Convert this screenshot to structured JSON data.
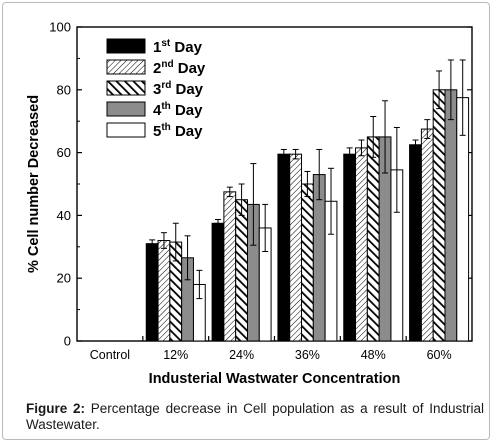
{
  "caption": {
    "label": "Figure 2:",
    "text": "Percentage decrease in Cell population as a result of Industrial Wastewater."
  },
  "chart_data": {
    "type": "bar",
    "categories": [
      "Control",
      "12%",
      "24%",
      "36%",
      "48%",
      "60%"
    ],
    "xlabel": "Industerial Wastwater Concentration",
    "ylabel": "% Cell number Decreased",
    "ylim": [
      0,
      100
    ],
    "yticks": [
      0,
      20,
      40,
      60,
      80,
      100
    ],
    "legend_position": "top-left",
    "series": [
      {
        "name": "1st Day",
        "base": "1",
        "sup": "st",
        "word": "Day",
        "fill": "solid-black",
        "values": [
          0,
          31,
          37.5,
          59.5,
          59.5,
          62.5
        ],
        "errors": [
          0,
          1.2,
          1.2,
          1.5,
          2.0,
          1.5
        ]
      },
      {
        "name": "2nd Day",
        "base": "2",
        "sup": "nd",
        "word": "Day",
        "fill": "fine-hatch",
        "values": [
          0,
          32,
          47.5,
          59.5,
          61.5,
          67.5
        ],
        "errors": [
          0,
          2.5,
          1.5,
          1.5,
          2.5,
          3.0
        ]
      },
      {
        "name": "3rd Day",
        "base": "3",
        "sup": "rd",
        "word": "Day",
        "fill": "bold-hatch",
        "values": [
          0,
          31.5,
          45,
          50,
          65,
          80
        ],
        "errors": [
          0,
          6.0,
          5.0,
          4.0,
          6.5,
          6.0
        ]
      },
      {
        "name": "4th Day",
        "base": "4",
        "sup": "th",
        "word": "Day",
        "fill": "gray",
        "values": [
          0,
          26.5,
          43.5,
          53,
          65,
          80
        ],
        "errors": [
          0,
          7.0,
          13.0,
          8.0,
          11.5,
          9.5
        ]
      },
      {
        "name": "5th Day",
        "base": "5",
        "sup": "th",
        "word": "Day",
        "fill": "white",
        "values": [
          0,
          18,
          36,
          44.5,
          54.5,
          77.5
        ],
        "errors": [
          0,
          4.5,
          7.5,
          10.5,
          13.5,
          12.0
        ]
      }
    ]
  }
}
